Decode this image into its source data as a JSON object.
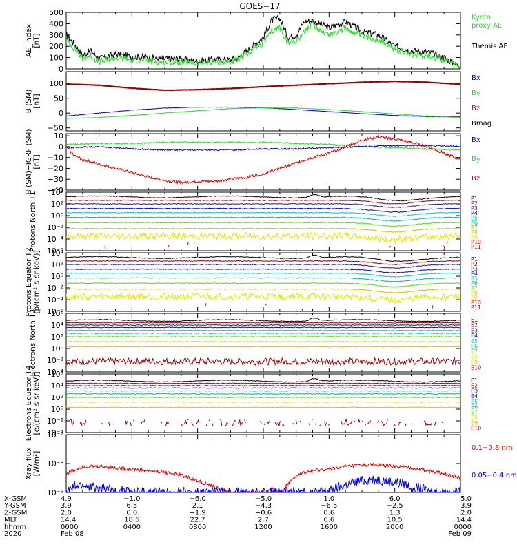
{
  "title": "GOES−17",
  "colors": {
    "black": "#000000",
    "green": "#22dd22",
    "blue": "#0000dd",
    "red": "#dd0000",
    "darkred": "#990000",
    "navy": "#1a1a99",
    "cyan": "#00c8c8",
    "teal": "#00b4a0",
    "lime": "#55dd00",
    "yellow": "#e6e600",
    "orange": "#ffaa00",
    "gold": "#ddbb00"
  },
  "chart_data": [
    {
      "type": "line",
      "id": "ae",
      "ylabel": "AE_index [nT]",
      "ylim": [
        0,
        500
      ],
      "yticks": [
        "500",
        "400",
        "300",
        "200",
        "100",
        "0"
      ],
      "legend": [
        {
          "text": "Kyoto",
          "color": "green"
        },
        {
          "text": "proxy AE",
          "color": "green"
        },
        {
          "text": "Themis AE",
          "color": "black"
        }
      ],
      "series": [
        {
          "name": "Themis AE",
          "color": "black",
          "x": [
            0,
            0.5,
            1,
            1.5,
            2,
            3,
            4,
            5,
            6,
            7,
            8,
            9,
            10,
            10.5,
            11,
            11.5,
            12,
            12.5,
            13,
            13.5,
            14,
            14.5,
            15,
            16,
            17,
            18,
            19,
            20,
            21,
            22,
            23,
            23.5,
            24
          ],
          "y": [
            300,
            220,
            120,
            160,
            90,
            130,
            110,
            100,
            90,
            90,
            70,
            80,
            80,
            100,
            160,
            220,
            280,
            430,
            450,
            280,
            300,
            420,
            430,
            360,
            420,
            330,
            300,
            200,
            160,
            150,
            100,
            60,
            20
          ]
        },
        {
          "name": "Kyoto proxy AE",
          "color": "green",
          "x": [
            0,
            0.5,
            1,
            1.5,
            2,
            3,
            4,
            5,
            6,
            7,
            8,
            9,
            10,
            10.5,
            11,
            11.5,
            12,
            12.5,
            13,
            13.5,
            14,
            14.5,
            15,
            16,
            17,
            18,
            19,
            20,
            21,
            22,
            23,
            23.5,
            24
          ],
          "y": [
            260,
            180,
            90,
            120,
            60,
            100,
            80,
            70,
            60,
            60,
            50,
            60,
            60,
            80,
            130,
            190,
            230,
            330,
            370,
            230,
            250,
            330,
            390,
            300,
            360,
            290,
            260,
            170,
            130,
            120,
            80,
            40,
            10
          ]
        }
      ]
    },
    {
      "type": "line",
      "id": "bsm",
      "ylabel": "B (SM) [nT]",
      "ylim": [
        -60,
        140
      ],
      "yticks": [
        "100",
        "50",
        "0",
        "−50"
      ],
      "legend": [
        {
          "text": "Bx",
          "color": "blue"
        },
        {
          "text": "By",
          "color": "green"
        },
        {
          "text": "Bz",
          "color": "red"
        },
        {
          "text": "Bmag",
          "color": "black"
        }
      ],
      "series": [
        {
          "name": "Bmag",
          "color": "black",
          "x": [
            0,
            2,
            4,
            6,
            8,
            10,
            12,
            14,
            16,
            18,
            20,
            22,
            24
          ],
          "y": [
            99,
            95,
            85,
            78,
            80,
            84,
            90,
            95,
            100,
            105,
            108,
            105,
            98
          ]
        },
        {
          "name": "Bz",
          "color": "darkred",
          "x": [
            0,
            2,
            4,
            6,
            8,
            10,
            12,
            14,
            16,
            18,
            20,
            22,
            24
          ],
          "y": [
            98,
            94,
            84,
            77,
            79,
            83,
            89,
            94,
            99,
            104,
            107,
            104,
            97
          ]
        },
        {
          "name": "Bx",
          "color": "blue",
          "x": [
            0,
            2,
            4,
            6,
            8,
            10,
            12,
            14,
            16,
            18,
            20,
            22,
            24
          ],
          "y": [
            -10,
            0,
            10,
            17,
            20,
            20,
            18,
            12,
            5,
            -2,
            -8,
            -12,
            -13
          ]
        },
        {
          "name": "By",
          "color": "green",
          "x": [
            0,
            2,
            4,
            6,
            8,
            10,
            12,
            14,
            16,
            18,
            20,
            22,
            24
          ],
          "y": [
            -18,
            -15,
            -8,
            0,
            8,
            15,
            18,
            17,
            12,
            5,
            -3,
            -10,
            -15
          ]
        }
      ]
    },
    {
      "type": "line",
      "id": "bdiff",
      "ylabel": "B (SM)−IGRF (SM) [nT]",
      "ylim": [
        -40,
        12
      ],
      "yticks": [
        "10",
        "0",
        "−10",
        "−20",
        "−30",
        "−40"
      ],
      "legend": [
        {
          "text": "Bx",
          "color": "blue"
        },
        {
          "text": "By",
          "color": "green"
        },
        {
          "text": "Bz",
          "color": "red"
        }
      ],
      "series": [
        {
          "name": "By",
          "color": "green",
          "x": [
            0,
            2,
            4,
            6,
            8,
            10,
            12,
            14,
            16,
            18,
            20,
            22,
            24
          ],
          "y": [
            2,
            3,
            3,
            4,
            4,
            4,
            4,
            3,
            2,
            0,
            -1,
            -2,
            -3
          ]
        },
        {
          "name": "Bx",
          "color": "blue",
          "x": [
            0,
            2,
            4,
            6,
            8,
            10,
            12,
            14,
            16,
            18,
            20,
            22,
            24
          ],
          "y": [
            -1,
            0,
            -2,
            -3,
            -3,
            -3,
            -2,
            -2,
            -1,
            0,
            1,
            1,
            0
          ]
        },
        {
          "name": "Bz",
          "color": "red",
          "x": [
            0,
            0.5,
            1,
            2,
            3,
            4,
            5,
            6,
            7,
            8,
            9,
            10,
            11,
            12,
            13,
            14,
            15,
            16,
            17,
            18,
            19,
            20,
            21,
            22,
            23,
            24
          ],
          "y": [
            0,
            -8,
            -12,
            -16,
            -20,
            -24,
            -28,
            -31,
            -33,
            -32,
            -32,
            -30,
            -28,
            -25,
            -20,
            -15,
            -10,
            -6,
            0,
            6,
            9,
            7,
            4,
            0,
            -6,
            -12
          ]
        }
      ]
    },
    {
      "type": "line",
      "id": "p_t1",
      "log": true,
      "ylabel": "Protons North T1",
      "ylim_exp": [
        -6,
        4
      ],
      "yticks": [
        "10⁴",
        "10²",
        "10⁰",
        "10⁻²",
        "10⁻⁴",
        "10⁻⁶"
      ],
      "channels": [
        {
          "label": "P1",
          "color": "black",
          "level": 3.2
        },
        {
          "label": "P2",
          "color": "darkred",
          "level": 2.6
        },
        {
          "label": "P3",
          "color": "navy",
          "level": 2.0
        },
        {
          "label": "P4",
          "color": "blue",
          "level": 1.2
        },
        {
          "label": "P5",
          "color": "cyan",
          "level": 0.5
        },
        {
          "label": "P6",
          "color": "teal",
          "level": -0.3
        },
        {
          "label": "P7",
          "color": "lime",
          "level": -1.2
        },
        {
          "label": "P8",
          "color": "gold",
          "level": -2.2
        },
        {
          "label": "P9",
          "color": "yellow",
          "level": -3.5
        },
        {
          "label": "P10",
          "color": "red",
          "level": -5.0
        },
        {
          "label": "P11",
          "color": "darkred",
          "level": -5.6
        }
      ]
    },
    {
      "type": "line",
      "id": "p_t2",
      "log": true,
      "ylabel": "Protons Equator T2 [p/(cm²-s-sr-keV)]",
      "ylim_exp": [
        -6,
        4
      ],
      "yticks": [
        "10⁴",
        "10²",
        "10⁰",
        "10⁻²",
        "10⁻⁴",
        "10⁻⁶"
      ],
      "channels": [
        {
          "label": "P1",
          "color": "black",
          "level": 3.2
        },
        {
          "label": "P2",
          "color": "darkred",
          "level": 2.6
        },
        {
          "label": "P3",
          "color": "navy",
          "level": 2.0
        },
        {
          "label": "P4",
          "color": "blue",
          "level": 1.2
        },
        {
          "label": "P5",
          "color": "cyan",
          "level": 0.5
        },
        {
          "label": "P6",
          "color": "teal",
          "level": -0.3
        },
        {
          "label": "P7",
          "color": "lime",
          "level": -1.2
        },
        {
          "label": "P8",
          "color": "gold",
          "level": -2.2
        },
        {
          "label": "P9",
          "color": "yellow",
          "level": -3.5
        },
        {
          "label": "P10",
          "color": "red",
          "level": -5.0
        },
        {
          "label": "P11",
          "color": "darkred",
          "level": -5.6
        }
      ]
    },
    {
      "type": "line",
      "id": "e_t3",
      "log": true,
      "ylabel": "Electrons North T3",
      "ylim_exp": [
        -4,
        6
      ],
      "yticks": [
        "10⁶",
        "10⁴",
        "10²",
        "10⁰",
        "10⁻²",
        "10⁻⁴"
      ],
      "channels": [
        {
          "label": "E1",
          "color": "black",
          "level": 4.8
        },
        {
          "label": "E2",
          "color": "darkred",
          "level": 4.4
        },
        {
          "label": "E3",
          "color": "navy",
          "level": 4.0
        },
        {
          "label": "E4",
          "color": "blue",
          "level": 3.6
        },
        {
          "label": "E5",
          "color": "cyan",
          "level": 3.1
        },
        {
          "label": "E6",
          "color": "teal",
          "level": 2.6
        },
        {
          "label": "E7",
          "color": "lime",
          "level": 2.0
        },
        {
          "label": "E8",
          "color": "yellow",
          "level": 1.2
        },
        {
          "label": "E9",
          "color": "orange",
          "level": 0.3
        },
        {
          "label": "E10",
          "color": "darkred",
          "level": -2.2
        }
      ]
    },
    {
      "type": "line",
      "id": "e_t4",
      "log": true,
      "ylabel": "Electrons Equator T4 [e/(cm²-s-sr-keV)]",
      "ylim_exp": [
        -4,
        6
      ],
      "yticks": [
        "10⁶",
        "10⁴",
        "10²",
        "10⁰",
        "10⁻²",
        "10⁻⁴"
      ],
      "channels": [
        {
          "label": "E1",
          "color": "black",
          "level": 4.8
        },
        {
          "label": "E2",
          "color": "darkred",
          "level": 4.4
        },
        {
          "label": "E3",
          "color": "navy",
          "level": 4.0
        },
        {
          "label": "E4",
          "color": "blue",
          "level": 3.6
        },
        {
          "label": "E5",
          "color": "cyan",
          "level": 3.1
        },
        {
          "label": "E6",
          "color": "teal",
          "level": 2.6
        },
        {
          "label": "E7",
          "color": "lime",
          "level": 2.0
        },
        {
          "label": "E8",
          "color": "yellow",
          "level": 1.2
        },
        {
          "label": "E9",
          "color": "orange",
          "level": 0.3
        },
        {
          "label": "E10",
          "color": "darkred",
          "level": -2.3
        }
      ]
    },
    {
      "type": "line",
      "id": "xray",
      "log": true,
      "ylabel": "Xray flux [W/m²]",
      "ylim_exp": [
        -9,
        -7
      ],
      "yticks": [
        "10⁻⁷",
        "10⁻⁸",
        "10⁻⁹"
      ],
      "legend": [
        {
          "text": "0.1−0.8 nm",
          "color": "red"
        },
        {
          "text": "0.05−0.4 nm",
          "color": "blue"
        }
      ],
      "series": [
        {
          "name": "0.1−0.8 nm",
          "color": "red",
          "x": [
            0,
            1,
            2,
            3,
            4,
            5,
            6,
            7,
            8,
            9,
            10,
            10.5,
            11,
            11.5,
            12,
            12.5,
            13,
            13.5,
            14,
            15,
            16,
            17,
            18,
            19,
            20,
            21,
            22,
            23,
            24
          ],
          "y": [
            -8.35,
            -8.1,
            -8.1,
            -8.15,
            -8.2,
            -8.25,
            -8.3,
            -8.4,
            -8.6,
            -8.8,
            -9.0,
            -9.0,
            -9.0,
            -9.0,
            -9.0,
            -8.85,
            -9.0,
            -8.7,
            -8.4,
            -8.25,
            -8.2,
            -8.1,
            -8.05,
            -8.05,
            -8.1,
            -8.15,
            -8.25,
            -8.35,
            -8.5
          ]
        },
        {
          "name": "0.05−0.4 nm",
          "color": "blue",
          "x": [
            0,
            0.5,
            1,
            1.5,
            2,
            2.5,
            3,
            3.5,
            4,
            5,
            6,
            7,
            8,
            9,
            10,
            11,
            12,
            13,
            14,
            15,
            16,
            16.5,
            17,
            17.5,
            18,
            18.5,
            19,
            19.5,
            20,
            20.5,
            21,
            21.5,
            22,
            23,
            24
          ],
          "y": [
            -9.0,
            -8.8,
            -8.75,
            -8.8,
            -8.9,
            -8.85,
            -9.0,
            -8.9,
            -9.0,
            -9.0,
            -9.0,
            -9.0,
            -9.0,
            -9.0,
            -9.0,
            -9.0,
            -9.0,
            -9.0,
            -9.0,
            -9.0,
            -8.95,
            -8.85,
            -8.75,
            -8.65,
            -8.6,
            -8.55,
            -8.55,
            -8.6,
            -8.65,
            -8.7,
            -8.8,
            -8.85,
            -8.95,
            -9.0,
            -9.0
          ]
        }
      ]
    }
  ],
  "x_axis": {
    "rows": [
      {
        "label": "X-GSM",
        "values": [
          "4.9",
          "−1.0",
          "−6.0",
          "−5.0",
          "1.0",
          "6.0",
          "5.0"
        ]
      },
      {
        "label": "Y-GSM",
        "values": [
          "3.9",
          "6.5",
          "2.1",
          "−4.3",
          "−6.5",
          "−2.5",
          "3.9"
        ]
      },
      {
        "label": "Z-GSM",
        "values": [
          "2.0",
          "0.0",
          "−1.9",
          "−0.6",
          "0.6",
          "1.3",
          "2.0"
        ]
      },
      {
        "label": "MLT",
        "values": [
          "14.4",
          "18.5",
          "22.7",
          "2.7",
          "6.6",
          "10.5",
          "14.4"
        ]
      },
      {
        "label": "hhmm",
        "values": [
          "0000",
          "0400",
          "0800",
          "1200",
          "1600",
          "2000",
          "0000"
        ]
      },
      {
        "label": "2020",
        "values": [
          "Feb 08",
          "",
          "",
          "",
          "",
          "",
          "Feb 09"
        ]
      }
    ],
    "hours": [
      0,
      4,
      8,
      12,
      16,
      20,
      24
    ]
  }
}
